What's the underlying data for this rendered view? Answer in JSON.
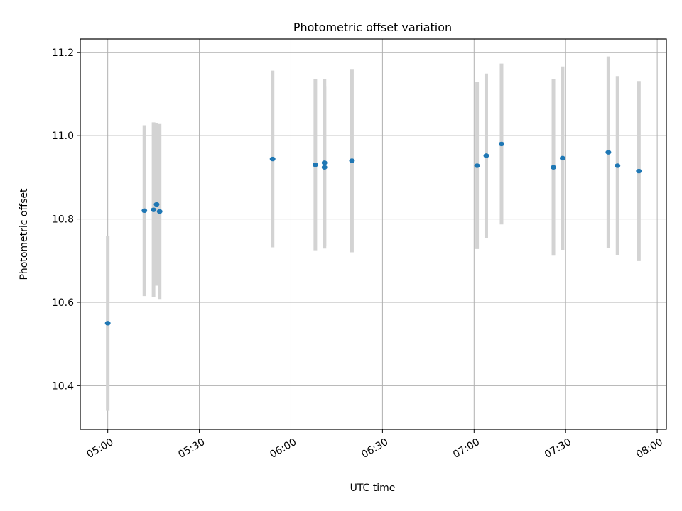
{
  "chart_data": {
    "type": "scatter",
    "title": "Photometric offset variation",
    "xlabel": "UTC time",
    "ylabel": "Photometric offset",
    "xlim": [
      "04:51",
      "08:03"
    ],
    "ylim": [
      10.295,
      11.232
    ],
    "grid": true,
    "x_ticks": [
      "05:00",
      "05:30",
      "06:00",
      "06:30",
      "07:00",
      "07:30",
      "08:00"
    ],
    "y_ticks": [
      10.4,
      10.6,
      10.8,
      11.0,
      11.2
    ],
    "y_tick_labels": [
      "10.4",
      "10.6",
      "10.8",
      "11.0",
      "11.2"
    ],
    "marker_color": "#1f77b4",
    "errorbar_color": "#d3d3d3",
    "points": [
      {
        "x": "05:00",
        "y": 10.55,
        "err": 0.21
      },
      {
        "x": "05:12",
        "y": 10.82,
        "err": 0.205
      },
      {
        "x": "05:15",
        "y": 10.822,
        "err": 0.21
      },
      {
        "x": "05:16",
        "y": 10.835,
        "err": 0.195
      },
      {
        "x": "05:17",
        "y": 10.818,
        "err": 0.21
      },
      {
        "x": "05:54",
        "y": 10.944,
        "err": 0.212
      },
      {
        "x": "06:08",
        "y": 10.93,
        "err": 0.205
      },
      {
        "x": "06:11",
        "y": 10.935,
        "err": 0.2
      },
      {
        "x": "06:11",
        "y": 10.924,
        "err": 0.195
      },
      {
        "x": "06:20",
        "y": 10.94,
        "err": 0.22
      },
      {
        "x": "07:01",
        "y": 10.928,
        "err": 0.2
      },
      {
        "x": "07:04",
        "y": 10.952,
        "err": 0.197
      },
      {
        "x": "07:09",
        "y": 10.98,
        "err": 0.193
      },
      {
        "x": "07:26",
        "y": 10.924,
        "err": 0.212
      },
      {
        "x": "07:29",
        "y": 10.946,
        "err": 0.22
      },
      {
        "x": "07:44",
        "y": 10.96,
        "err": 0.23
      },
      {
        "x": "07:47",
        "y": 10.928,
        "err": 0.215
      },
      {
        "x": "07:54",
        "y": 10.915,
        "err": 0.216
      }
    ]
  }
}
